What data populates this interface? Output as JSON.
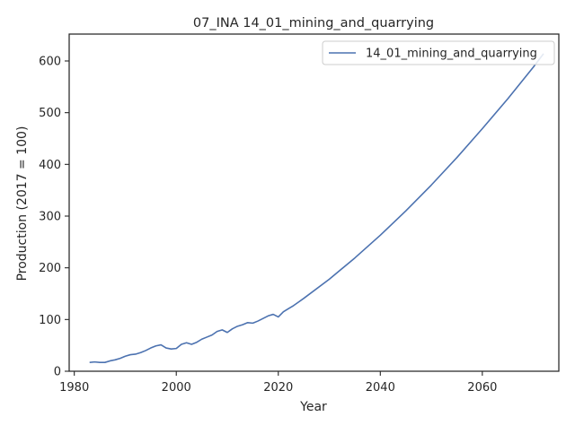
{
  "chart_data": {
    "type": "line",
    "title": "07_INA 14_01_mining_and_quarrying",
    "xlabel": "Year",
    "ylabel": "Production (2017 = 100)",
    "xlim": [
      1979,
      2075
    ],
    "ylim": [
      0,
      652
    ],
    "xticks": [
      1980,
      2000,
      2020,
      2040,
      2060
    ],
    "yticks": [
      0,
      100,
      200,
      300,
      400,
      500,
      600
    ],
    "grid": false,
    "legend_position": "top-right",
    "series": [
      {
        "name": "14_01_mining_and_quarrying",
        "color": "#4c72b0",
        "x": [
          1983,
          1984,
          1985,
          1986,
          1987,
          1988,
          1989,
          1990,
          1991,
          1992,
          1993,
          1994,
          1995,
          1996,
          1997,
          1998,
          1999,
          2000,
          2001,
          2002,
          2003,
          2004,
          2005,
          2006,
          2007,
          2008,
          2009,
          2010,
          2011,
          2012,
          2013,
          2014,
          2015,
          2016,
          2017,
          2018,
          2019,
          2020,
          2021,
          2022,
          2023,
          2024,
          2025,
          2030,
          2035,
          2040,
          2045,
          2050,
          2055,
          2060,
          2065,
          2070,
          2072
        ],
        "values": [
          17,
          18,
          17,
          17,
          20,
          22,
          25,
          29,
          32,
          33,
          36,
          40,
          45,
          49,
          51,
          45,
          43,
          44,
          52,
          55,
          52,
          56,
          62,
          66,
          70,
          77,
          80,
          75,
          82,
          87,
          90,
          94,
          93,
          97,
          102,
          107,
          110,
          105,
          115,
          121,
          127,
          134,
          141,
          178,
          219,
          263,
          310,
          360,
          413,
          469,
          527,
          588,
          614
        ]
      }
    ]
  }
}
